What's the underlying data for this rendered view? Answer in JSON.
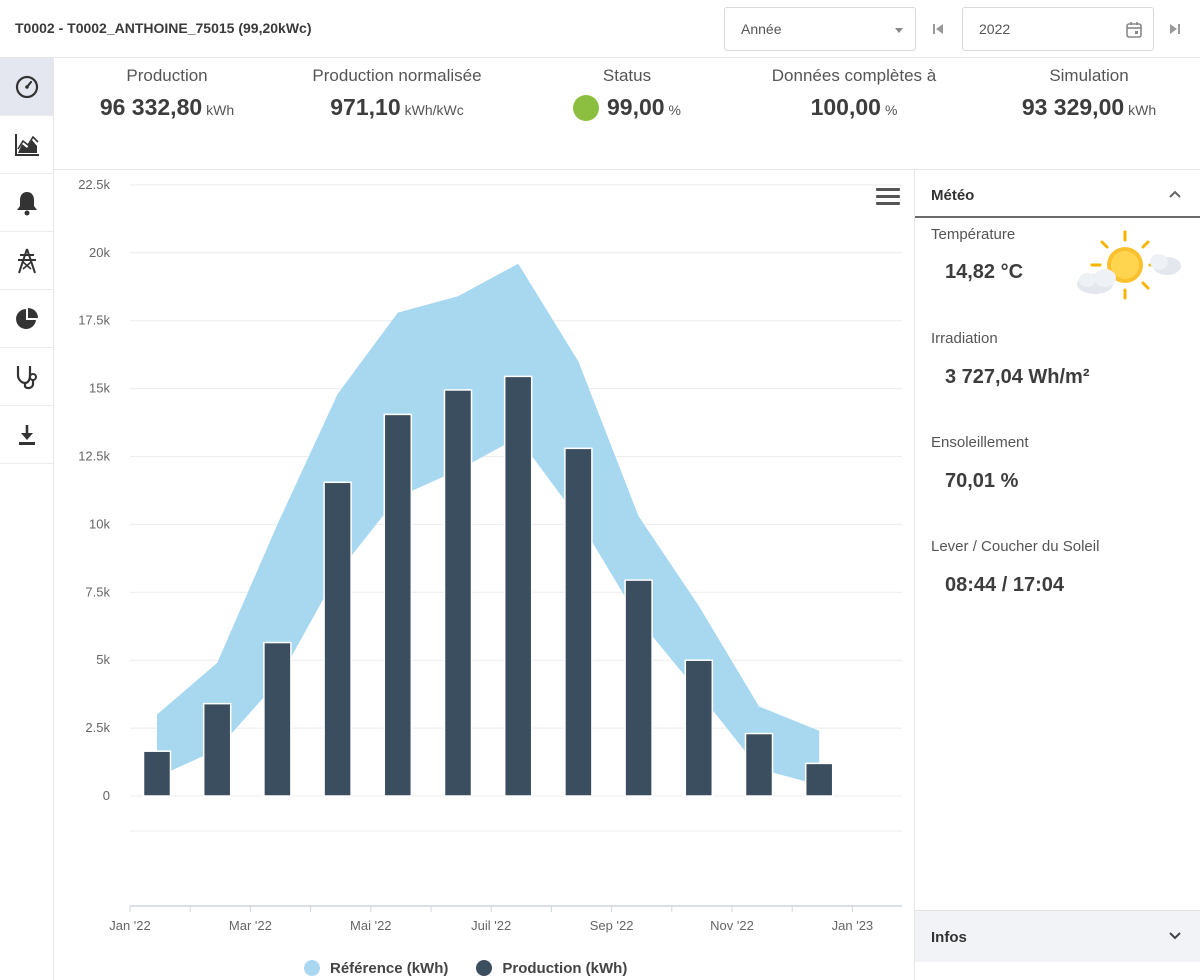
{
  "header": {
    "title": "T0002 - T0002_ANTHOINE_75015 (99,20kWc)",
    "period_select": "Année",
    "year_value": "2022"
  },
  "sidebar": {
    "items": [
      {
        "icon": "dashboard-gauge-icon",
        "active": true
      },
      {
        "icon": "area-chart-icon",
        "active": false
      },
      {
        "icon": "bell-icon",
        "active": false
      },
      {
        "icon": "power-pylon-icon",
        "active": false
      },
      {
        "icon": "pie-chart-icon",
        "active": false
      },
      {
        "icon": "stethoscope-icon",
        "active": false
      },
      {
        "icon": "download-icon",
        "active": false
      }
    ]
  },
  "kpis": {
    "production": {
      "label": "Production",
      "value": "96 332,80",
      "unit": "kWh"
    },
    "normalized": {
      "label": "Production normalisée",
      "value": "971,10",
      "unit": "kWh/kWc"
    },
    "status": {
      "label": "Status",
      "value": "99,00",
      "unit": "%",
      "color": "#8cbf3f"
    },
    "completeness": {
      "label": "Données complètes à",
      "value": "100,00",
      "unit": "%"
    },
    "simulation": {
      "label": "Simulation",
      "value": "93 329,00",
      "unit": "kWh"
    }
  },
  "chart_data": {
    "type": "bar",
    "x_tick_labels": [
      "Jan '22",
      "Mar '22",
      "Mai '22",
      "Juil '22",
      "Sep '22",
      "Nov '22",
      "Jan '23"
    ],
    "y_tick_labels": [
      "0",
      "2.5k",
      "5k",
      "7.5k",
      "10k",
      "12.5k",
      "15k",
      "17.5k",
      "20k",
      "22.5k"
    ],
    "ylim": [
      0,
      22500
    ],
    "series": [
      {
        "name": "Référence (kWh)",
        "type": "arearange",
        "color": "#a8d8f0",
        "low": [
          700,
          1700,
          4200,
          8200,
          11000,
          12000,
          13200,
          10200,
          6500,
          3800,
          1000,
          400
        ],
        "high": [
          3000,
          4900,
          10000,
          14800,
          17800,
          18400,
          19600,
          16000,
          10300,
          7000,
          3300,
          2400
        ]
      },
      {
        "name": "Production (kWh)",
        "type": "column",
        "color": "#3b4e5f",
        "values": [
          1650,
          3400,
          5650,
          11550,
          14050,
          14950,
          15450,
          12800,
          7950,
          5000,
          2300,
          1200
        ]
      }
    ],
    "legend_position": "bottom",
    "grid": true
  },
  "meteo": {
    "title": "Météo",
    "temperature_label": "Température",
    "temperature_value": "14,82 °C",
    "irradiation_label": "Irradiation",
    "irradiation_value": "3 727,04 Wh/m²",
    "sunshine_label": "Ensoleillement",
    "sunshine_value": "70,01 %",
    "sun_label": "Lever / Coucher du Soleil",
    "sun_value": "08:44 / 17:04",
    "weather_icon": "sun-cloud-icon"
  },
  "infos": {
    "title": "Infos"
  }
}
